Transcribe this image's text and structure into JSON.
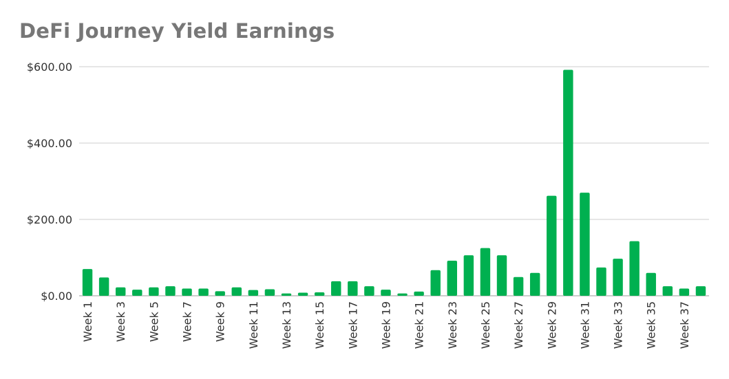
{
  "chart_data": {
    "type": "bar",
    "title": "DeFi Journey Yield Earnings",
    "xlabel": "",
    "ylabel": "",
    "ylim": [
      0,
      600
    ],
    "yticks": [
      0,
      200,
      400,
      600
    ],
    "ytick_labels": [
      "$0.00",
      "$200.00",
      "$400.00",
      "$600.00"
    ],
    "grid": true,
    "color": "#00b050",
    "categories": [
      "Week 1",
      "Week 2",
      "Week 3",
      "Week 4",
      "Week 5",
      "Week 6",
      "Week 7",
      "Week 8",
      "Week 9",
      "Week 10",
      "Week 11",
      "Week 12",
      "Week 13",
      "Week 14",
      "Week 15",
      "Week 16",
      "Week 17",
      "Week 18",
      "Week 19",
      "Week 20",
      "Week 21",
      "Week 22",
      "Week 23",
      "Week 24",
      "Week 25",
      "Week 26",
      "Week 27",
      "Week 28",
      "Week 29",
      "Week 30",
      "Week 31",
      "Week 32",
      "Week 33",
      "Week 34",
      "Week 35",
      "Week 36",
      "Week 37",
      "Week 38"
    ],
    "shown_x_labels": [
      "Week 1",
      "Week 3",
      "Week 5",
      "Week 7",
      "Week 9",
      "Week 11",
      "Week 13",
      "Week 15",
      "Week 17",
      "Week 19",
      "Week 21",
      "Week 23",
      "Week 25",
      "Week 27",
      "Week 29",
      "Week 31",
      "Week 33",
      "Week 35",
      "Week 37"
    ],
    "values": [
      70,
      48,
      22,
      16,
      22,
      25,
      19,
      19,
      12,
      22,
      15,
      17,
      6,
      8,
      9,
      38,
      38,
      25,
      16,
      6,
      11,
      67,
      92,
      106,
      125,
      106,
      49,
      60,
      262,
      592,
      270,
      74,
      97,
      143,
      60,
      25,
      19,
      25
    ]
  }
}
